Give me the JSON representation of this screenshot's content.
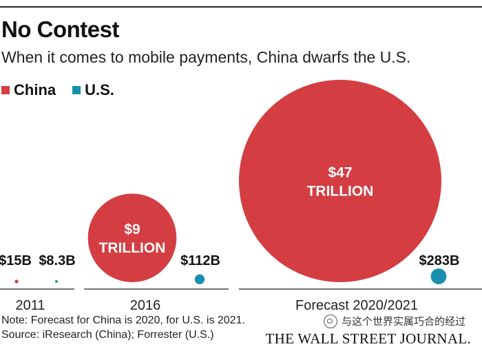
{
  "header": {
    "title": "No Contest",
    "subtitle": "When it comes to mobile payments, China dwarfs the U.S."
  },
  "legend": [
    {
      "label": "China",
      "color": "#d43d41"
    },
    {
      "label": "U.S.",
      "color": "#1a8fae"
    }
  ],
  "chart_data": {
    "type": "bubble",
    "unit": "USD",
    "groups": [
      {
        "label": "2011",
        "china": {
          "value": 15000000000,
          "label": "$15B"
        },
        "us": {
          "value": 8300000000,
          "label": "$8.3B"
        }
      },
      {
        "label": "2016",
        "china": {
          "value": 9000000000000,
          "label_lines": [
            "$9",
            "TRILLION"
          ]
        },
        "us": {
          "value": 112000000000,
          "label": "$112B"
        }
      },
      {
        "label": "Forecast 2020/2021",
        "china": {
          "value": 47000000000000,
          "label_lines": [
            "$47",
            "TRILLION"
          ]
        },
        "us": {
          "value": 283000000000,
          "label": "$283B"
        }
      }
    ]
  },
  "footer": {
    "note": "Note: Forecast for China is 2020, for U.S. is 2021.",
    "source": "Source: iResearch (China); Forrester (U.S.)",
    "watermark": "与这个世界实属巧合的经过",
    "publisher": "THE WALL STREET JOURNAL."
  }
}
